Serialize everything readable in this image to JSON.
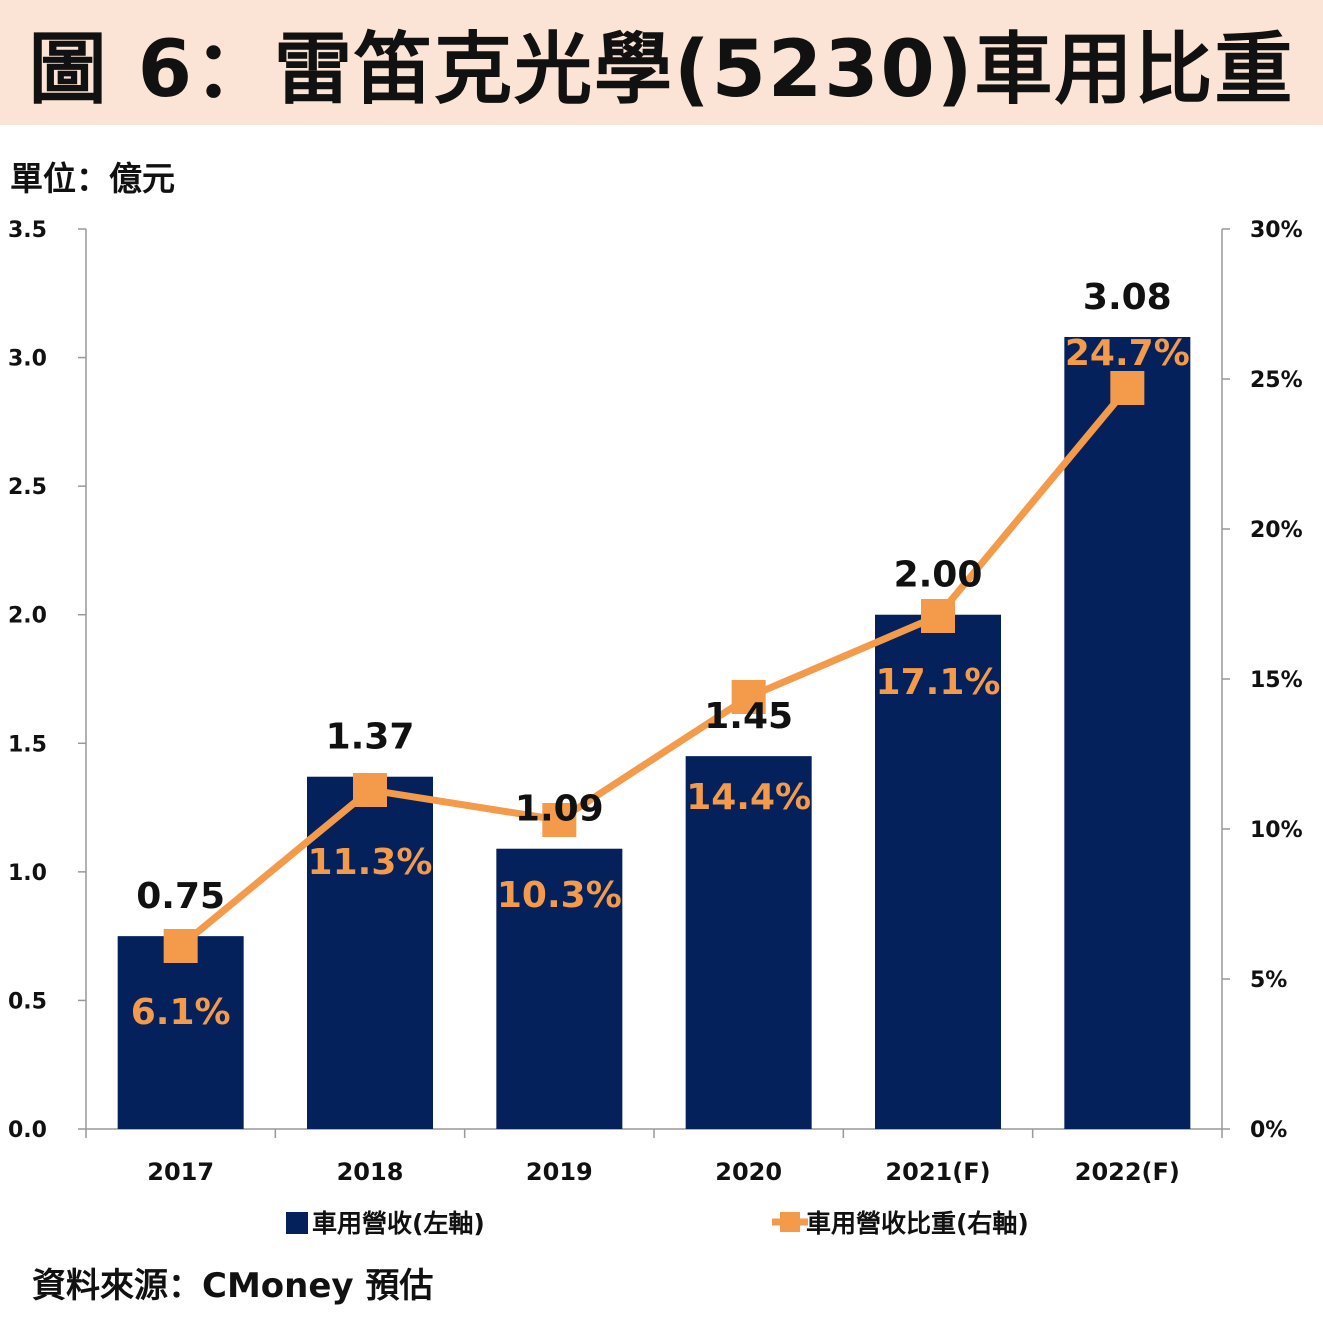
{
  "title": "圖 6：雷笛克光學(5230)車用比重",
  "unit": "單位：億元",
  "source": "資料來源：CMoney 預估",
  "colors": {
    "bar": "#04215c",
    "line": "#f39a4b",
    "title_bg": "#fbe4d5"
  },
  "chart_data": {
    "type": "bar",
    "categories": [
      "2017",
      "2018",
      "2019",
      "2020",
      "2021(F)",
      "2022(F)"
    ],
    "series": [
      {
        "name": "車用營收(左軸)",
        "type": "bar",
        "axis": "left",
        "values": [
          0.75,
          1.37,
          1.09,
          1.45,
          2.0,
          3.08
        ],
        "labels": [
          "0.75",
          "1.37",
          "1.09",
          "1.45",
          "2.00",
          "3.08"
        ]
      },
      {
        "name": "車用營收比重(右軸)",
        "type": "line",
        "axis": "right",
        "values": [
          6.1,
          11.3,
          10.3,
          14.4,
          17.1,
          24.7
        ],
        "labels": [
          "6.1%",
          "11.3%",
          "10.3%",
          "14.4%",
          "17.1%",
          "24.7%"
        ]
      }
    ],
    "left_axis": {
      "ylim": [
        0,
        3.5
      ],
      "ticks": [
        "0.0",
        "0.5",
        "1.0",
        "1.5",
        "2.0",
        "2.5",
        "3.0",
        "3.5"
      ]
    },
    "right_axis": {
      "ylim": [
        0,
        30
      ],
      "ticks": [
        "0%",
        "5%",
        "10%",
        "15%",
        "20%",
        "25%",
        "30%"
      ]
    },
    "grid": false,
    "legend": "bottom"
  }
}
